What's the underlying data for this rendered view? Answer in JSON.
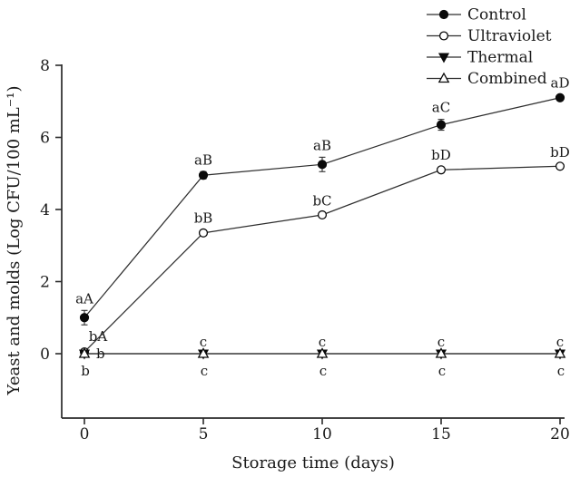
{
  "window": {
    "background": "#ffffff"
  },
  "chart_data": {
    "type": "line",
    "title": "",
    "xlabel": "Storage time (days)",
    "ylabel": "Yeast and molds (Log CFU/100 mL⁻¹)",
    "x": [
      0,
      5,
      10,
      15,
      20
    ],
    "xticks": [
      "0",
      "5",
      "10",
      "15",
      "20"
    ],
    "yticks": [
      "0",
      "2",
      "4",
      "6",
      "8"
    ],
    "xlim": [
      -1,
      21
    ],
    "ylim": [
      -1.8,
      8
    ],
    "grid": false,
    "legend": {
      "position": "top-right",
      "entries": [
        "Control",
        "Ultraviolet",
        "Thermal",
        "Combined"
      ]
    },
    "series": [
      {
        "name": "Control",
        "marker": "filled-circle",
        "values": [
          1.0,
          4.95,
          5.25,
          6.35,
          7.1
        ],
        "errors": [
          0.2,
          0.1,
          0.2,
          0.15,
          0.08
        ],
        "point_labels": [
          "aA",
          "aB",
          "aB",
          "aC",
          "aD"
        ],
        "label_positions": [
          "above",
          "above",
          "above",
          "above",
          "above"
        ]
      },
      {
        "name": "Ultraviolet",
        "marker": "open-circle",
        "values": [
          0.05,
          3.35,
          3.85,
          5.1,
          5.2
        ],
        "errors": [
          0.05,
          0.08,
          0.06,
          0.08,
          0.06
        ],
        "point_labels": [
          "bA",
          "bB",
          "bC",
          "bD",
          "bD"
        ],
        "label_positions": [
          "above-right",
          "above",
          "above",
          "above",
          "above"
        ]
      },
      {
        "name": "Thermal",
        "marker": "filled-triangle-down",
        "values": [
          0,
          0,
          0,
          0,
          0
        ],
        "errors": [
          0,
          0,
          0,
          0,
          0
        ],
        "point_labels": [
          "b",
          "c",
          "c",
          "c",
          "c"
        ],
        "label_positions": [
          "right",
          "above",
          "above",
          "above",
          "above"
        ]
      },
      {
        "name": "Combined",
        "marker": "open-triangle-up",
        "values": [
          0,
          0,
          0,
          0,
          0
        ],
        "errors": [
          0,
          0,
          0,
          0,
          0
        ],
        "point_labels": [
          "b",
          "c",
          "c",
          "c",
          "c"
        ],
        "label_positions": [
          "below",
          "below",
          "below",
          "below",
          "below"
        ]
      }
    ],
    "colors": {
      "axis": "#2a2a2a",
      "line": "#2e2e2e",
      "marker_fill": "#0a0a0a",
      "marker_open_fill": "#ffffff",
      "text": "#1a1a1a"
    }
  }
}
